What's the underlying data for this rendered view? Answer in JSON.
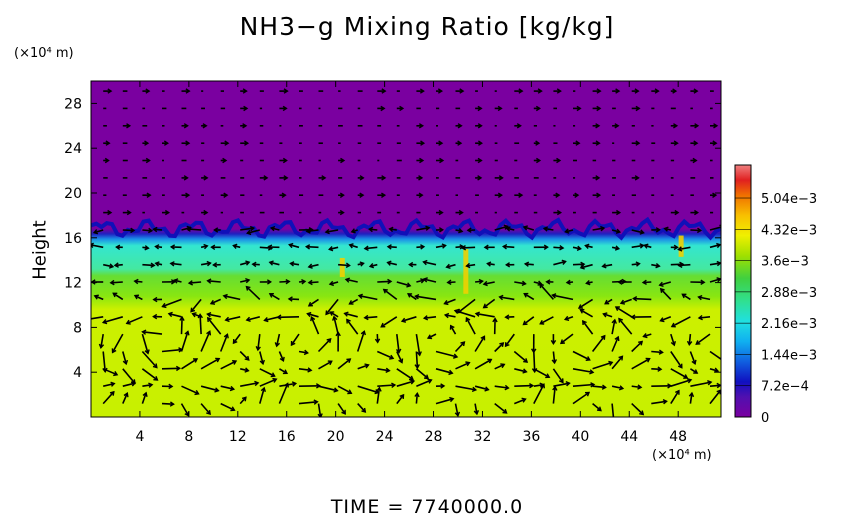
{
  "title": "NH3−g Mixing Ratio [kg/kg]",
  "y_unit": "(×10⁴ m)",
  "x_unit": "(×10⁴ m)",
  "ylabel": "Height",
  "time_label": "TIME  =  7740000.0",
  "colors": {
    "top_layer": "#7a00a0",
    "mid_layer": "#33e6d0",
    "band_layer": "#66dd33",
    "bottom_layer": "#ccf000",
    "vector": "#000000"
  },
  "chart_data": {
    "type": "heatmap",
    "title": "NH3−g Mixing Ratio [kg/kg]",
    "xlabel": "",
    "ylabel": "Height",
    "x_ticks": [
      "4",
      "8",
      "12",
      "16",
      "20",
      "24",
      "28",
      "32",
      "36",
      "40",
      "44",
      "48"
    ],
    "x_tick_values": [
      4,
      8,
      12,
      16,
      20,
      24,
      28,
      32,
      36,
      40,
      44,
      48
    ],
    "y_ticks": [
      "4",
      "8",
      "12",
      "16",
      "20",
      "24",
      "28"
    ],
    "y_tick_values": [
      4,
      8,
      12,
      16,
      20,
      24,
      28
    ],
    "xlim": [
      0,
      51.5
    ],
    "ylim": [
      0,
      30
    ],
    "colorbar": {
      "labels": [
        "0",
        "7.2e−4",
        "1.44e−3",
        "2.16e−3",
        "2.88e−3",
        "3.6e−3",
        "4.32e−3",
        "5.04e−3"
      ],
      "values": [
        0,
        0.00072,
        0.00144,
        0.00216,
        0.00288,
        0.0036,
        0.00432,
        0.00504
      ],
      "max": 0.0058
    },
    "layers": [
      {
        "from_height": 0,
        "to_height": 10,
        "value": 0.0033
      },
      {
        "from_height": 10,
        "to_height": 13.5,
        "value": 0.0029
      },
      {
        "from_height": 13.5,
        "to_height": 17,
        "value": 0.0022
      },
      {
        "from_height": 17,
        "to_height": 30,
        "value": 0.0
      }
    ],
    "overlay": "wind vectors"
  }
}
